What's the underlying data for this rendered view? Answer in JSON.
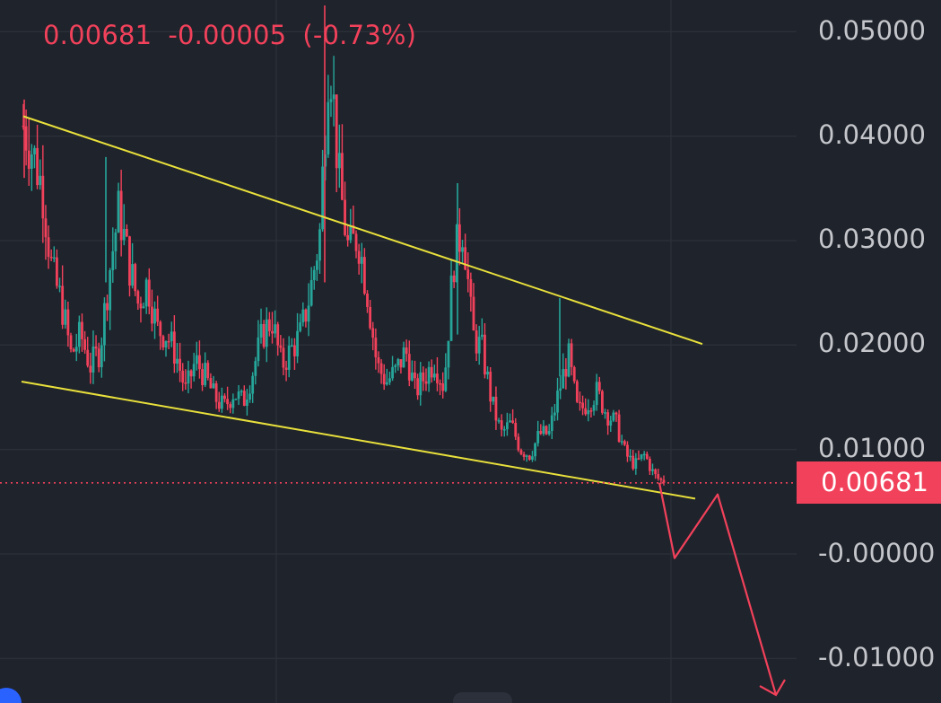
{
  "quote": {
    "price": "0.00681",
    "change": "-0.00005",
    "change_pct": "(-0.73%)"
  },
  "current_price_label": "0.00681",
  "colors": {
    "background": "#1f232b",
    "grid": "#2a2f38",
    "bull": "#26a69a",
    "bear": "#f2415b",
    "trendline": "#e8e03c",
    "projection": "#f2415b",
    "axis_text": "#c4c6cb"
  },
  "chart_data": {
    "type": "candlestick",
    "symbol_visible": false,
    "y_axis": {
      "tick_labels": [
        "0.05000",
        "0.04000",
        "0.03000",
        "0.02000",
        "0.01000",
        "-0.00000",
        "-0.01000"
      ],
      "tick_values": [
        0.05,
        0.04,
        0.03,
        0.02,
        0.01,
        0.0,
        -0.01
      ],
      "range": [
        -0.0115,
        0.053
      ]
    },
    "current_price": 0.00681,
    "price_line_style": "dotted",
    "candles_close_path_estimate": [
      0.041,
      0.0385,
      0.035,
      0.027,
      0.024,
      0.019,
      0.021,
      0.018,
      0.0195,
      0.027,
      0.033,
      0.028,
      0.024,
      0.026,
      0.0215,
      0.021,
      0.019,
      0.0155,
      0.0185,
      0.017,
      0.015,
      0.014,
      0.0155,
      0.0145,
      0.0175,
      0.021,
      0.0225,
      0.018,
      0.0195,
      0.021,
      0.025,
      0.0305,
      0.049,
      0.036,
      0.029,
      0.0305,
      0.025,
      0.018,
      0.0165,
      0.0175,
      0.0195,
      0.0155,
      0.017,
      0.0185,
      0.016,
      0.028,
      0.0315,
      0.021,
      0.0195,
      0.0145,
      0.0115,
      0.0125,
      0.01,
      0.0095,
      0.0115,
      0.0115,
      0.0155,
      0.019,
      0.0135,
      0.0145,
      0.0155,
      0.0135,
      0.0125,
      0.0095,
      0.0085,
      0.0095,
      0.0075,
      0.00681
    ],
    "trendlines": [
      {
        "name": "upper",
        "from": [
          0,
          0.0419
        ],
        "to": [
          1,
          0.0201
        ]
      },
      {
        "name": "lower",
        "from": [
          0,
          0.0165
        ],
        "to": [
          1,
          0.0053
        ]
      }
    ],
    "projection_path": [
      0.00681,
      -0.0004,
      0.0057,
      -0.0135
    ],
    "grid": true,
    "legend": "none"
  }
}
